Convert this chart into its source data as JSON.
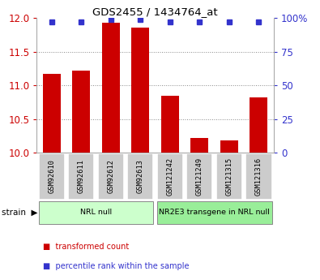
{
  "title": "GDS2455 / 1434764_at",
  "samples": [
    "GSM92610",
    "GSM92611",
    "GSM92612",
    "GSM92613",
    "GSM121242",
    "GSM121249",
    "GSM121315",
    "GSM121316"
  ],
  "transformed_counts": [
    11.17,
    11.22,
    11.93,
    11.86,
    10.85,
    10.22,
    10.18,
    10.82
  ],
  "percentile_ranks": [
    97,
    97,
    99,
    99,
    97,
    97,
    97,
    97
  ],
  "ylim": [
    10.0,
    12.0
  ],
  "yticks": [
    10.0,
    10.5,
    11.0,
    11.5,
    12.0
  ],
  "right_yticks": [
    0,
    25,
    50,
    75,
    100
  ],
  "right_ylim": [
    0,
    100
  ],
  "bar_color": "#cc0000",
  "dot_color": "#3333cc",
  "groups": [
    {
      "label": "NRL null",
      "start": 0,
      "end": 4,
      "color": "#ccffcc"
    },
    {
      "label": "NR2E3 transgene in NRL null",
      "start": 4,
      "end": 8,
      "color": "#99ee99"
    }
  ],
  "left_tick_color": "#cc0000",
  "right_tick_color": "#3333cc",
  "tick_label_bg": "#cccccc",
  "bar_width": 0.6,
  "dot_size": 5
}
